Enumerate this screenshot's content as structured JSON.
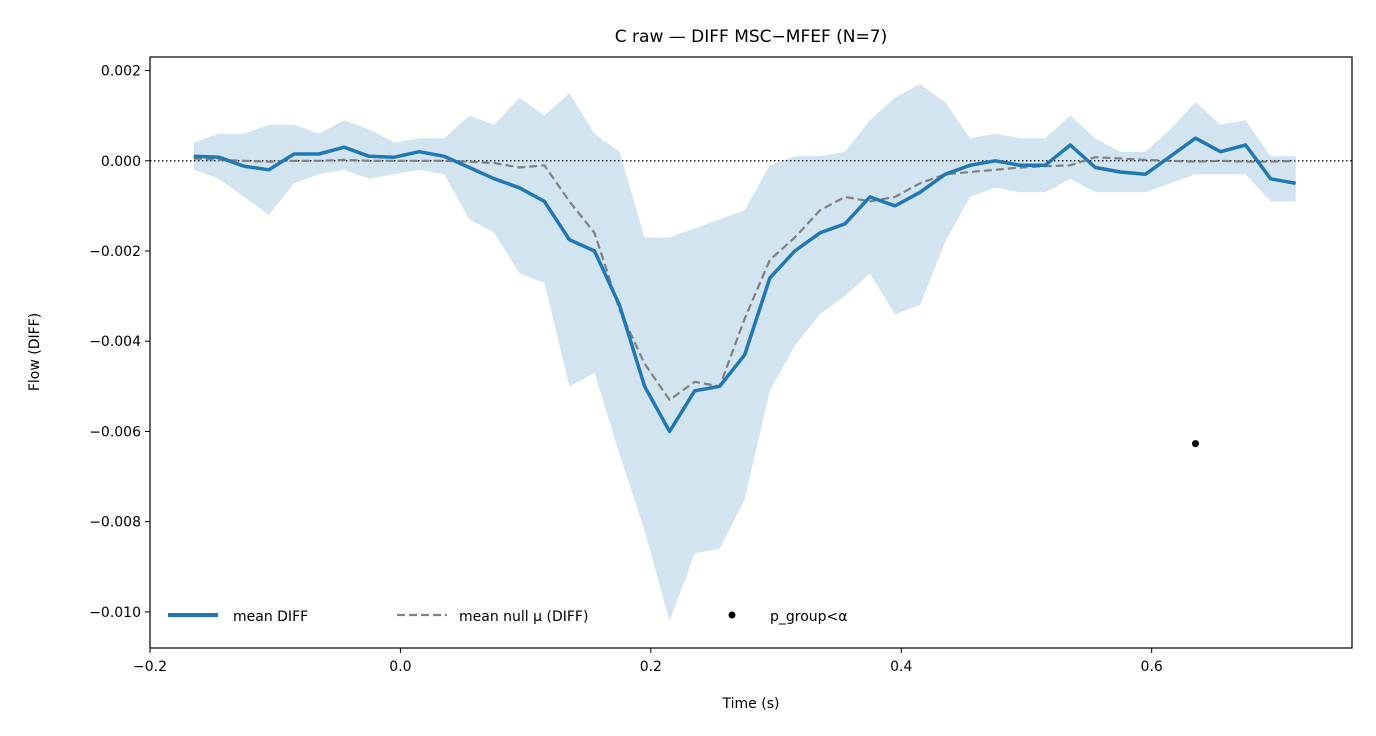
{
  "chart_data": {
    "type": "line",
    "title": "C raw — DIFF MSC−MFEF (N=7)",
    "xlabel": "Time (s)",
    "ylabel": "Flow (DIFF)",
    "xlim": [
      -0.2,
      0.76
    ],
    "ylim": [
      -0.0108,
      0.0023
    ],
    "xticks": [
      -0.2,
      0.0,
      0.2,
      0.4,
      0.6
    ],
    "xtick_labels": [
      "−0.2",
      "0.0",
      "0.2",
      "0.4",
      "0.6"
    ],
    "yticks": [
      0.002,
      0.0,
      -0.002,
      -0.004,
      -0.006,
      -0.008,
      -0.01
    ],
    "ytick_labels": [
      "0.002",
      "0.000",
      "−0.002",
      "−0.004",
      "−0.006",
      "−0.008",
      "−0.010"
    ],
    "reference_line_y": 0.0,
    "legend_position": "lower left",
    "x": [
      -0.165,
      -0.145,
      -0.125,
      -0.105,
      -0.085,
      -0.065,
      -0.045,
      -0.025,
      -0.005,
      0.015,
      0.035,
      0.055,
      0.075,
      0.095,
      0.115,
      0.135,
      0.155,
      0.175,
      0.195,
      0.215,
      0.235,
      0.255,
      0.275,
      0.295,
      0.315,
      0.335,
      0.355,
      0.375,
      0.395,
      0.415,
      0.435,
      0.455,
      0.475,
      0.495,
      0.515,
      0.535,
      0.555,
      0.575,
      0.595,
      0.615,
      0.635,
      0.655,
      0.675,
      0.695,
      0.715
    ],
    "series": [
      {
        "name": "mean DIFF",
        "color": "#1f77b4",
        "style": "solid",
        "values": [
          0.0001,
          8e-05,
          -0.00012,
          -0.0002,
          0.00015,
          0.00015,
          0.0003,
          0.0001,
          8e-05,
          0.0002,
          0.0001,
          -0.00015,
          -0.0004,
          -0.0006,
          -0.0009,
          -0.00175,
          -0.002,
          -0.0032,
          -0.005,
          -0.006,
          -0.0051,
          -0.005,
          -0.0043,
          -0.0026,
          -0.002,
          -0.0016,
          -0.0014,
          -0.0008,
          -0.001,
          -0.0007,
          -0.0003,
          -0.0001,
          0.0,
          -0.0001,
          -0.0001,
          0.00035,
          -0.00015,
          -0.00025,
          -0.0003,
          0.0001,
          0.0005,
          0.0002,
          0.00035,
          -0.0004,
          -0.0005
        ]
      },
      {
        "name": "mean null μ (DIFF)",
        "color": "#808080",
        "style": "dashed",
        "values": [
          5e-05,
          2e-05,
          0.0,
          -2e-05,
          0.0,
          0.0,
          2e-05,
          0.0,
          0.0,
          0.0,
          0.0,
          -2e-05,
          -5e-05,
          -0.00015,
          -0.0001,
          -0.0009,
          -0.0016,
          -0.0033,
          -0.0045,
          -0.0053,
          -0.0049,
          -0.005,
          -0.0035,
          -0.0022,
          -0.0017,
          -0.0011,
          -0.0008,
          -0.0009,
          -0.0008,
          -0.0005,
          -0.0003,
          -0.00025,
          -0.0002,
          -0.00015,
          -0.00012,
          -0.0001,
          8e-05,
          5e-05,
          2e-05,
          0.0,
          -2e-05,
          0.0,
          -2e-05,
          -2e-05,
          0.0
        ]
      }
    ],
    "band": {
      "color": "#1f77b4",
      "opacity": 0.2,
      "upper": [
        0.0004,
        0.0006,
        0.0006,
        0.0008,
        0.0008,
        0.0006,
        0.0009,
        0.0007,
        0.0004,
        0.0005,
        0.0005,
        0.001,
        0.0008,
        0.0014,
        0.001,
        0.0015,
        0.0006,
        0.0002,
        -0.0017,
        -0.0017,
        -0.0015,
        -0.0013,
        -0.0011,
        -0.0001,
        0.0001,
        0.0001,
        0.0002,
        0.0009,
        0.0014,
        0.0017,
        0.0013,
        0.0005,
        0.0006,
        0.0005,
        0.0005,
        0.001,
        0.0005,
        0.0002,
        0.0002,
        0.0007,
        0.0013,
        0.0008,
        0.0009,
        0.0001,
        0.0001
      ],
      "lower": [
        -0.0002,
        -0.0004,
        -0.0008,
        -0.0012,
        -0.0005,
        -0.0003,
        -0.0002,
        -0.0004,
        -0.0003,
        -0.0002,
        -0.0003,
        -0.0013,
        -0.0016,
        -0.0025,
        -0.0027,
        -0.005,
        -0.0047,
        -0.0065,
        -0.0082,
        -0.0102,
        -0.0087,
        -0.0086,
        -0.0075,
        -0.0051,
        -0.0041,
        -0.0034,
        -0.003,
        -0.0025,
        -0.0034,
        -0.0032,
        -0.0018,
        -0.0008,
        -0.0006,
        -0.0007,
        -0.0007,
        -0.0004,
        -0.0007,
        -0.0007,
        -0.0007,
        -0.0005,
        -0.0003,
        -0.0003,
        -0.0003,
        -0.0009,
        -0.0009
      ]
    },
    "significant_points": {
      "name": "p_group<α",
      "color": "#000000",
      "points": [
        {
          "x": 0.635,
          "y": -0.00627
        }
      ]
    }
  }
}
